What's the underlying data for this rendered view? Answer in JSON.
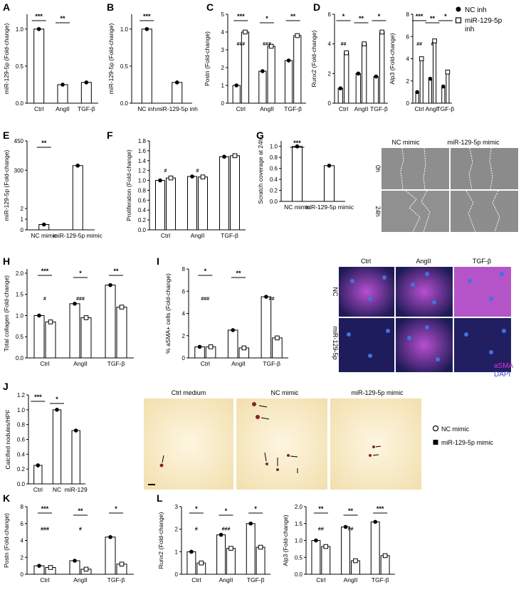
{
  "panel_letters": [
    "A",
    "B",
    "C",
    "D",
    "E",
    "F",
    "G",
    "H",
    "I",
    "J",
    "K",
    "L"
  ],
  "legend_top": {
    "nc": "NC inh",
    "mir": "miR-129-5p",
    "mir2": "inh"
  },
  "legend_j": {
    "nc": "NC mimic",
    "mir": "miR-129-5p mimic"
  },
  "stat_labels": {
    "A": [
      "***",
      "**"
    ],
    "B": [
      "***"
    ],
    "C": [
      "***",
      "*",
      "**",
      "###",
      "###"
    ],
    "D": [
      "*",
      "**",
      "*",
      "##",
      "***",
      "**",
      "*",
      "##",
      "#"
    ],
    "E": [
      "**"
    ],
    "F": [
      "#",
      "#"
    ],
    "G": [
      "***"
    ],
    "H": [
      "***",
      "*",
      "**",
      "#",
      "###"
    ],
    "I": [
      "*",
      "**",
      "##",
      "###"
    ],
    "J": [
      "***",
      "*"
    ],
    "K": [
      "***",
      "**",
      "*",
      "###",
      "#"
    ],
    "L": [
      "*",
      "*",
      "*",
      "#",
      "###",
      "**",
      "**",
      "***",
      "##",
      "##"
    ]
  },
  "image_labels": {
    "G": {
      "col1": "NC mimic",
      "col2": "miR-129-5p mimic",
      "row1": "0h",
      "row2": "24h"
    },
    "I": {
      "col1": "Ctrl",
      "col2": "AngII",
      "col3": "TGF-β",
      "row1": "NC",
      "row2": "miR-129-5p",
      "stain1": "aSMA",
      "stain2": "DAPI"
    },
    "J": {
      "col1": "Ctrl medium",
      "col2": "NC mimic",
      "col3": "miR-129-5p mimic"
    }
  },
  "colors": {
    "stain1": "#d63ad6",
    "stain2": "#3a4fd6"
  },
  "chart_data": [
    {
      "panel": "A",
      "type": "bar",
      "ylabel": "miR-129-5p (Fold-change)",
      "categories": [
        "Ctrl",
        "AngII",
        "TGF-β"
      ],
      "ylim": [
        0,
        1.2
      ],
      "yticks": [
        "0.0",
        "0.5",
        "1.0"
      ],
      "series": [
        {
          "values": [
            1.0,
            0.25,
            0.28
          ]
        }
      ]
    },
    {
      "panel": "B",
      "type": "bar",
      "ylabel": "miR-129-5p (Fold-change)",
      "categories": [
        "NC inh",
        "miR-129-5p inh"
      ],
      "ylim": [
        0,
        1.2
      ],
      "yticks": [
        "0.0",
        "0.5",
        "1.0"
      ],
      "series": [
        {
          "values": [
            1.0,
            0.28
          ]
        }
      ]
    },
    {
      "panel": "C",
      "type": "bar",
      "ylabel": "Postn (Fold-change)",
      "categories": [
        "Ctrl",
        "AngII",
        "TGF-β"
      ],
      "ylim": [
        0,
        5
      ],
      "yticks": [
        "0",
        "1",
        "2",
        "3",
        "4",
        "5"
      ],
      "series": [
        {
          "values": [
            1.0,
            1.8,
            2.4
          ]
        },
        {
          "values": [
            4.0,
            3.2,
            3.8
          ]
        }
      ]
    },
    {
      "panel": "D1",
      "type": "bar",
      "ylabel": "Runx2 (Fold-change)",
      "categories": [
        "Ctrl",
        "AngII",
        "TGF-β"
      ],
      "ylim": [
        0,
        6
      ],
      "yticks": [
        "0",
        "2",
        "4",
        "6"
      ],
      "series": [
        {
          "values": [
            1.0,
            2.0,
            1.8
          ]
        },
        {
          "values": [
            3.4,
            4.0,
            4.8
          ]
        }
      ]
    },
    {
      "panel": "D2",
      "type": "bar",
      "ylabel": "Alp3 (Fold-change)",
      "categories": [
        "Ctrl",
        "AngII",
        "TGF-β"
      ],
      "ylim": [
        0,
        8
      ],
      "yticks": [
        "0",
        "2",
        "4",
        "6",
        "8"
      ],
      "series": [
        {
          "values": [
            1.0,
            2.2,
            1.5
          ]
        },
        {
          "values": [
            4.0,
            5.6,
            2.8
          ]
        }
      ]
    },
    {
      "panel": "E",
      "type": "bar",
      "ylabel": "miR-129-5p (Fold-change)",
      "categories": [
        "NC mimic",
        "miR-129-5p mimic"
      ],
      "ylim": [
        0,
        450
      ],
      "yticks": [
        "0",
        "1",
        "2",
        "300",
        "450"
      ],
      "series": [
        {
          "values": [
            1.0,
            325
          ]
        }
      ]
    },
    {
      "panel": "F",
      "type": "bar",
      "ylabel": "Proliferation (Fold-change)",
      "categories": [
        "Ctrl",
        "AngII",
        "TGF-β"
      ],
      "ylim": [
        0,
        1.8
      ],
      "yticks": [
        "0.0",
        "0.2",
        "0.4",
        "0.6",
        "0.8",
        "1.0",
        "1.2",
        "1.4",
        "1.6",
        "1.8"
      ],
      "series": [
        {
          "values": [
            1.0,
            1.08,
            1.48
          ]
        },
        {
          "values": [
            1.05,
            1.07,
            1.5
          ]
        }
      ]
    },
    {
      "panel": "G",
      "type": "bar",
      "ylabel": "Scratch coverage at 24h",
      "categories": [
        "NC mimic",
        "miR-129-5p mimic"
      ],
      "ylim": [
        0,
        1.1
      ],
      "yticks": [
        "0.0",
        "0.2",
        "0.4",
        "0.6",
        "0.8",
        "1.0"
      ],
      "series": [
        {
          "values": [
            1.0,
            0.65
          ]
        }
      ]
    },
    {
      "panel": "H",
      "type": "bar",
      "ylabel": "Total collagen (Fold-change)",
      "categories": [
        "Ctrl",
        "AngII",
        "TGF-β"
      ],
      "ylim": [
        0,
        2.1
      ],
      "yticks": [
        "0.0",
        "0.5",
        "1.0",
        "1.5",
        "2.0"
      ],
      "series": [
        {
          "values": [
            1.0,
            1.28,
            1.72
          ]
        },
        {
          "values": [
            0.85,
            0.95,
            1.2
          ]
        }
      ]
    },
    {
      "panel": "I",
      "type": "bar",
      "ylabel": "% aSMA+ cells (Fold-change)",
      "categories": [
        "Ctrl",
        "AngII",
        "TGF-β"
      ],
      "ylim": [
        0,
        8
      ],
      "yticks": [
        "0",
        "2",
        "4",
        "6",
        "8"
      ],
      "series": [
        {
          "values": [
            1.0,
            2.5,
            5.5
          ]
        },
        {
          "values": [
            1.0,
            0.9,
            1.8
          ]
        }
      ]
    },
    {
      "panel": "J",
      "type": "bar",
      "ylabel": "Calcified nodules/HPF",
      "categories": [
        "Ctrl",
        "NC",
        "miR-129"
      ],
      "ylim": [
        0,
        1.2
      ],
      "yticks": [
        "0.0",
        "0.2",
        "0.4",
        "0.6",
        "0.8",
        "1.0",
        "1.2"
      ],
      "series": [
        {
          "values": [
            0.25,
            1.0,
            0.72
          ]
        }
      ]
    },
    {
      "panel": "K",
      "type": "bar",
      "ylabel": "Postn (Fold-change)",
      "categories": [
        "Ctrl",
        "AngII",
        "TGF-β"
      ],
      "ylim": [
        0,
        8
      ],
      "yticks": [
        "0",
        "2",
        "4",
        "6",
        "8"
      ],
      "series": [
        {
          "values": [
            1.0,
            1.6,
            4.4
          ]
        },
        {
          "values": [
            0.8,
            0.6,
            1.2
          ]
        }
      ]
    },
    {
      "panel": "L1",
      "type": "bar",
      "ylabel": "Runx2 (Fold-change)",
      "categories": [
        "Ctrl",
        "AngII",
        "TGF-β"
      ],
      "ylim": [
        0,
        3
      ],
      "yticks": [
        "0",
        "1",
        "2",
        "3"
      ],
      "series": [
        {
          "values": [
            1.0,
            1.75,
            2.25
          ]
        },
        {
          "values": [
            0.5,
            1.15,
            1.2
          ]
        }
      ]
    },
    {
      "panel": "L2",
      "type": "bar",
      "ylabel": "Alp3 (Fold-change)",
      "categories": [
        "Ctrl",
        "AngII",
        "TGF-β"
      ],
      "ylim": [
        0,
        2.0
      ],
      "yticks": [
        "0.0",
        "0.5",
        "1.0",
        "1.5",
        "2.0"
      ],
      "series": [
        {
          "values": [
            1.0,
            1.4,
            1.55
          ]
        },
        {
          "values": [
            0.82,
            0.4,
            0.55
          ]
        }
      ]
    }
  ]
}
